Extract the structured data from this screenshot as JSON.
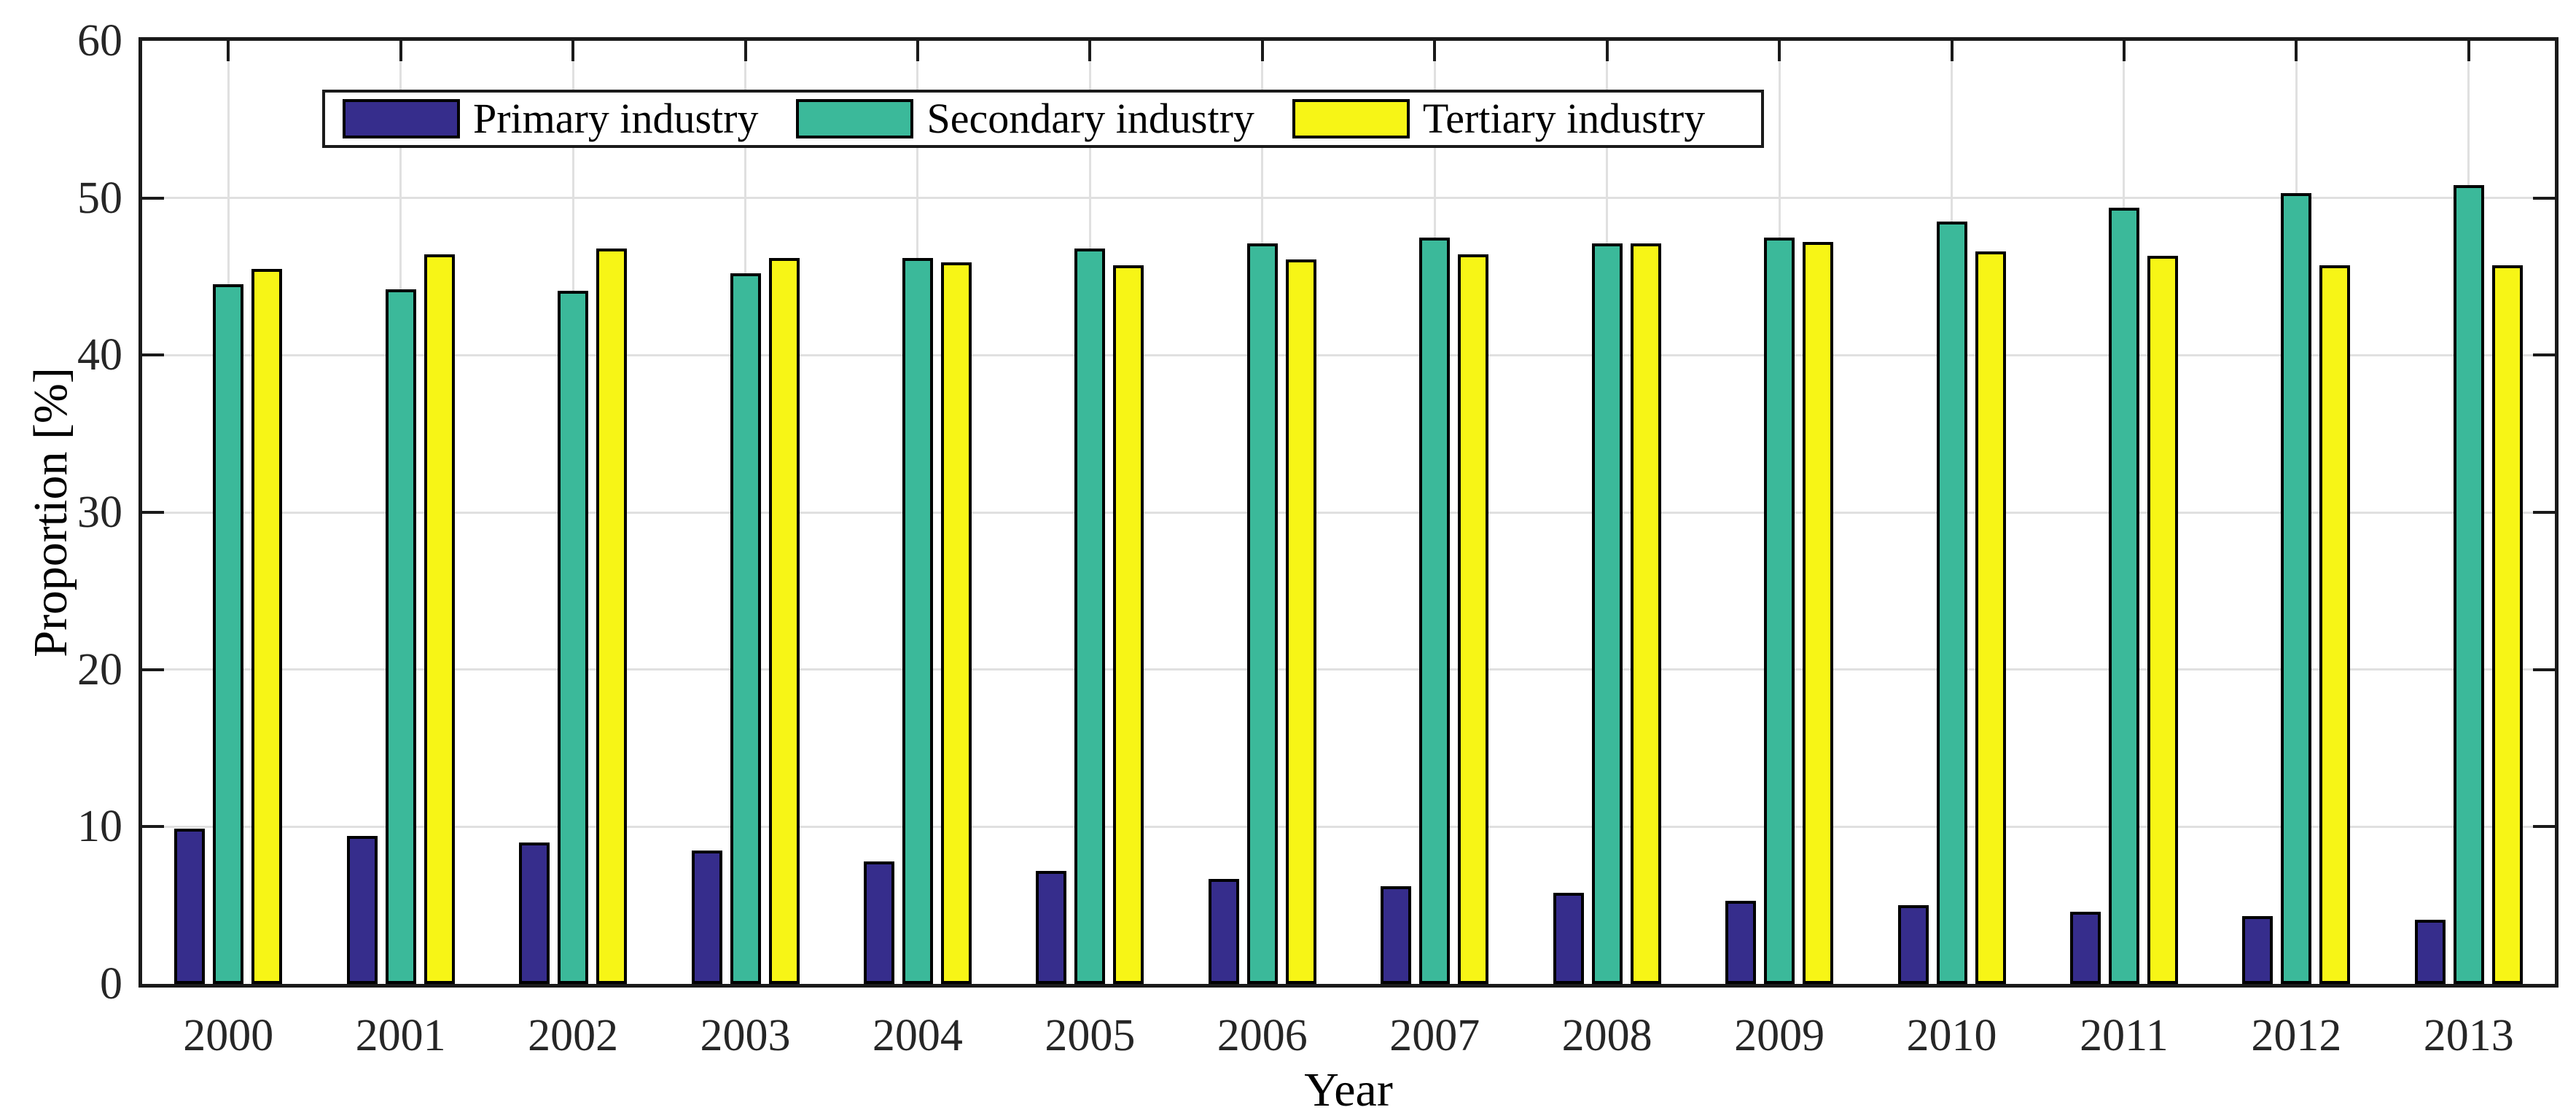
{
  "chart_data": {
    "type": "bar",
    "title": "",
    "xlabel": "Year",
    "ylabel": "Proportion [%]",
    "categories": [
      "2000",
      "2001",
      "2002",
      "2003",
      "2004",
      "2005",
      "2006",
      "2007",
      "2008",
      "2009",
      "2010",
      "2011",
      "2012",
      "2013"
    ],
    "series": [
      {
        "name": "Primary industry",
        "color": "#362D8C",
        "values": [
          9.9,
          9.4,
          9.0,
          8.5,
          7.8,
          7.2,
          6.7,
          6.2,
          5.8,
          5.3,
          5.0,
          4.6,
          4.3,
          4.1
        ]
      },
      {
        "name": "Secondary industry",
        "color": "#3BB99A",
        "values": [
          44.5,
          44.2,
          44.1,
          45.2,
          46.2,
          46.8,
          47.1,
          47.5,
          47.1,
          47.5,
          48.5,
          49.4,
          50.3,
          50.8
        ]
      },
      {
        "name": "Tertiary industry",
        "color": "#F7F516",
        "values": [
          45.5,
          46.4,
          46.8,
          46.2,
          45.9,
          45.7,
          46.1,
          46.4,
          47.1,
          47.2,
          46.6,
          46.3,
          45.7,
          45.7
        ]
      }
    ],
    "ylim": [
      0,
      60
    ],
    "yticks": [
      0,
      10,
      20,
      30,
      40,
      50,
      60
    ],
    "grid": true,
    "legend_position": "top-inside"
  },
  "colors": {
    "axis_frame": "#1a1a1a",
    "bar_outline": "#000000",
    "gridline": "#e0e0e0",
    "tick_label": "#262626",
    "background": "#ffffff"
  }
}
